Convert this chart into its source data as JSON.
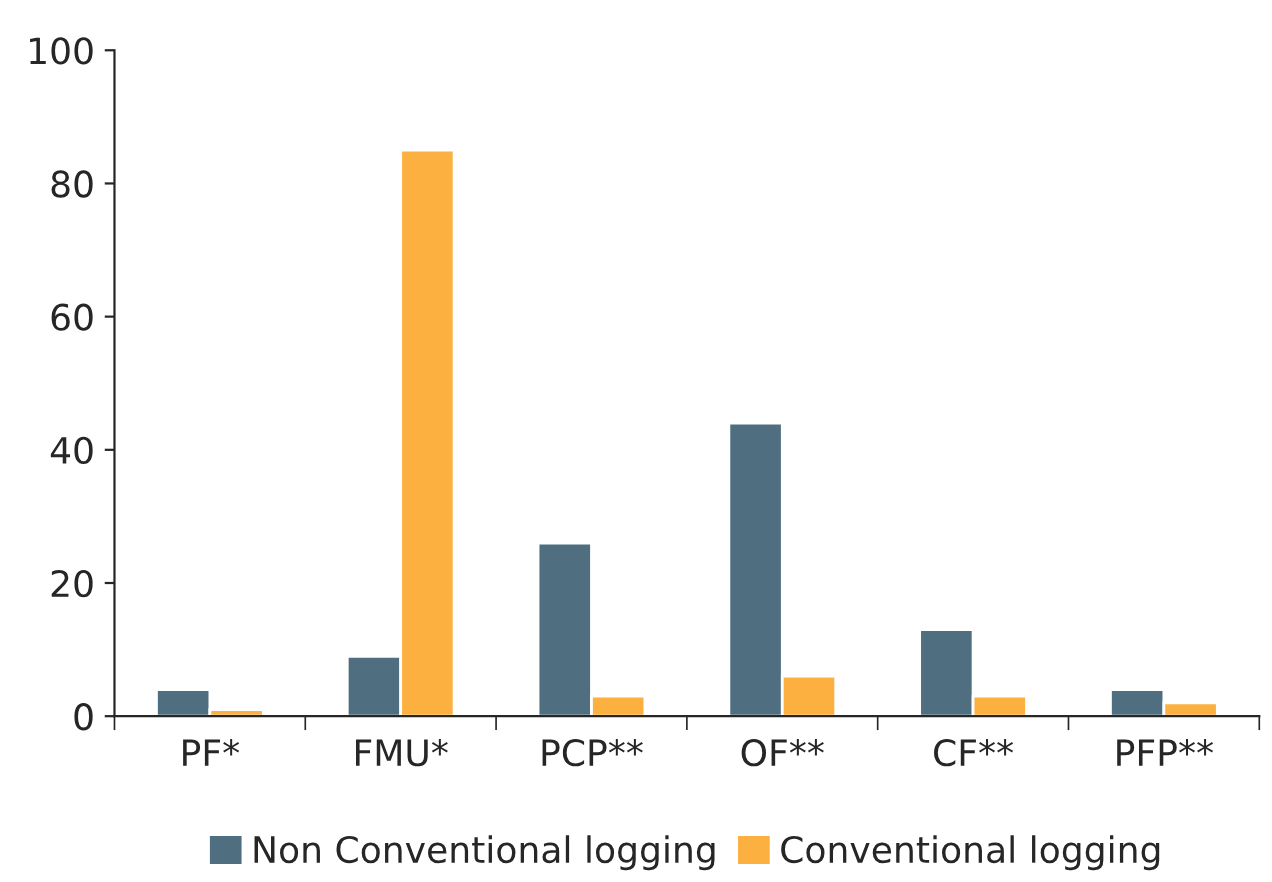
{
  "chart_data": {
    "type": "bar",
    "categories": [
      "PF*",
      "FMU*",
      "PCP**",
      "OF**",
      "CF**",
      "PFP**"
    ],
    "series": [
      {
        "name": "Non Conventional logging",
        "color": "#4f6f80",
        "values": [
          4,
          9,
          26,
          44,
          13,
          4
        ]
      },
      {
        "name": "Conventional logging",
        "color": "#fbb040",
        "values": [
          1,
          85,
          3,
          6,
          3,
          2
        ]
      }
    ],
    "ylim": [
      0,
      100
    ],
    "yticks": [
      0,
      20,
      40,
      60,
      80,
      100
    ],
    "grid": false,
    "legend": "bottom"
  }
}
